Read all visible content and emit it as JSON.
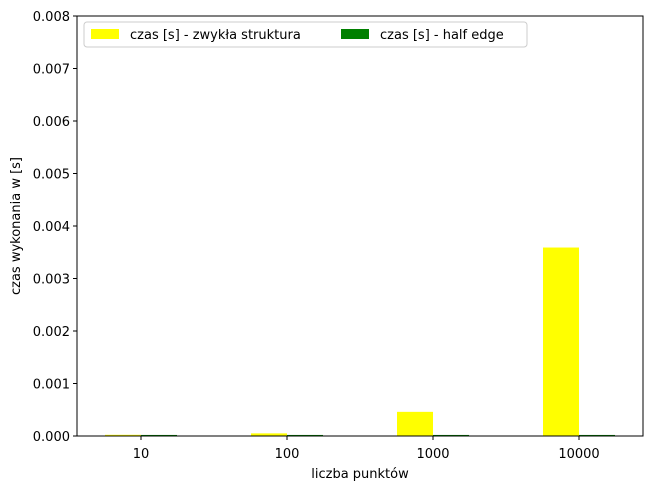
{
  "chart_data": {
    "type": "bar",
    "categories": [
      "10",
      "100",
      "1000",
      "10000"
    ],
    "series": [
      {
        "name": "czas [s] - zwykła struktura",
        "color": "#ffff00",
        "values": [
          2e-06,
          5e-05,
          0.00046,
          0.00359
        ]
      },
      {
        "name": "czas [s] - half edge",
        "color": "#008000",
        "values": [
          2e-05,
          2e-05,
          2e-05,
          2e-05
        ]
      }
    ],
    "xlabel": "liczba punktów",
    "ylabel": "czas wykonania w [s]",
    "ylim": [
      0,
      0.008
    ],
    "yticks": [
      "0.000",
      "0.001",
      "0.002",
      "0.003",
      "0.004",
      "0.005",
      "0.006",
      "0.007",
      "0.008"
    ],
    "legend_position": "upper-left",
    "grid": false
  }
}
